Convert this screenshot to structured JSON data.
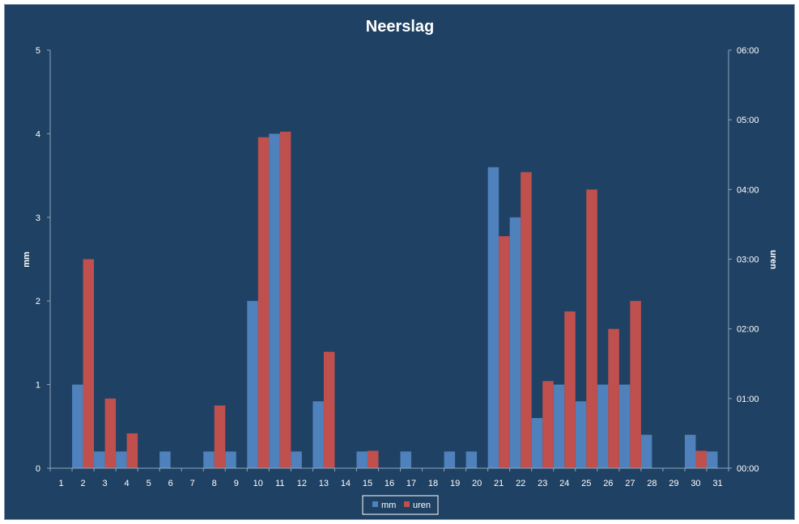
{
  "chart_data": {
    "type": "bar",
    "title": "Neerslag",
    "ylabel": "mm",
    "y2label": "uren",
    "ylim": [
      0,
      5
    ],
    "y2lim": [
      0,
      6
    ],
    "y_ticks": [
      "0",
      "1",
      "2",
      "3",
      "4",
      "5"
    ],
    "y2_ticks": [
      "00:00",
      "01:00",
      "02:00",
      "03:00",
      "04:00",
      "05:00",
      "06:00"
    ],
    "categories": [
      "1",
      "2",
      "3",
      "4",
      "5",
      "6",
      "7",
      "8",
      "9",
      "10",
      "11",
      "12",
      "13",
      "14",
      "15",
      "16",
      "17",
      "18",
      "19",
      "20",
      "21",
      "22",
      "23",
      "24",
      "25",
      "26",
      "27",
      "28",
      "29",
      "30",
      "31"
    ],
    "series": [
      {
        "name": "mm",
        "axis": "left",
        "color": "#4f81bd",
        "values": [
          0,
          1.0,
          0.2,
          0.2,
          0,
          0.2,
          0,
          0.2,
          0.2,
          2.0,
          4.0,
          0.2,
          0.8,
          0,
          0.2,
          0,
          0.2,
          0,
          0.2,
          0.2,
          3.6,
          3.0,
          0.6,
          1.0,
          0.8,
          1.0,
          1.0,
          0.4,
          0,
          0.4,
          0.2
        ]
      },
      {
        "name": "uren",
        "axis": "right",
        "color": "#c0504d",
        "values": [
          0,
          3.0,
          1.0,
          0.5,
          0,
          0,
          0,
          0.9,
          0,
          4.75,
          4.83,
          0,
          1.67,
          0,
          0.25,
          0,
          0,
          0,
          0,
          0,
          3.33,
          4.25,
          1.25,
          2.25,
          4.0,
          2.0,
          2.4,
          0,
          0,
          0.25,
          0
        ]
      }
    ],
    "legend_position": "bottom",
    "grid": false
  }
}
